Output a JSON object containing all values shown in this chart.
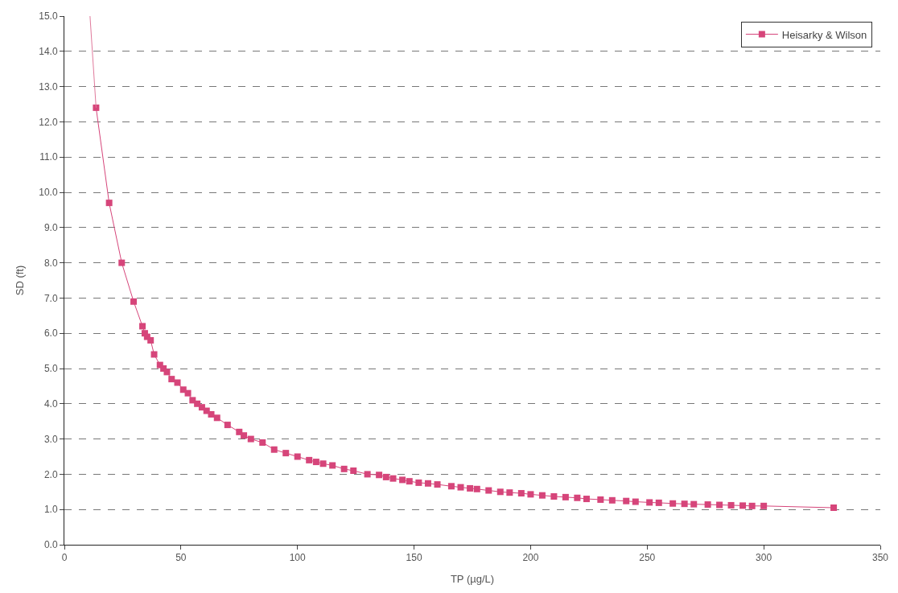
{
  "chart_data": {
    "type": "line",
    "xlabel": "TP (µg/L)",
    "ylabel": "SD (ft)",
    "series": [
      {
        "name": "Heisarky & Wilson",
        "color": "#d6457a",
        "marker": "square",
        "x": [
          13.6,
          19.2,
          24.6,
          29.7,
          33.5,
          34.5,
          35.5,
          37,
          38.5,
          41,
          42.5,
          44,
          46,
          48.5,
          51,
          53,
          55,
          57,
          59,
          61,
          63,
          65.5,
          70,
          75,
          77,
          80,
          85,
          90,
          95,
          100,
          105,
          108,
          111,
          115,
          120,
          124,
          130,
          135,
          138,
          141,
          145,
          148,
          152,
          156,
          160,
          166,
          170,
          174,
          177,
          182,
          187,
          191,
          196,
          200,
          205,
          210,
          215,
          220,
          224,
          230,
          235,
          241,
          245,
          251,
          255,
          261,
          266,
          270,
          276,
          281,
          286,
          291,
          295,
          300,
          330
        ],
        "values": [
          12.4,
          9.7,
          8.0,
          6.9,
          6.2,
          6.0,
          5.9,
          5.8,
          5.4,
          5.1,
          5.0,
          4.9,
          4.7,
          4.6,
          4.4,
          4.3,
          4.1,
          4.0,
          3.9,
          3.8,
          3.7,
          3.6,
          3.4,
          3.2,
          3.1,
          3.0,
          2.9,
          2.7,
          2.6,
          2.5,
          2.4,
          2.35,
          2.3,
          2.25,
          2.15,
          2.1,
          2.0,
          1.98,
          1.92,
          1.88,
          1.84,
          1.8,
          1.76,
          1.74,
          1.71,
          1.66,
          1.63,
          1.6,
          1.58,
          1.54,
          1.5,
          1.48,
          1.46,
          1.43,
          1.4,
          1.37,
          1.35,
          1.33,
          1.3,
          1.28,
          1.26,
          1.24,
          1.22,
          1.2,
          1.19,
          1.17,
          1.16,
          1.15,
          1.14,
          1.13,
          1.12,
          1.11,
          1.1,
          1.1,
          1.05
        ]
      },
      {
        "color": "#e07a9c",
        "marker": "none",
        "x": [
          11,
          13.6
        ],
        "values": [
          15,
          12.4
        ]
      }
    ],
    "xlim": [
      0,
      350
    ],
    "xticks": [
      0,
      50,
      100,
      150,
      200,
      250,
      300,
      350
    ],
    "ylim": [
      0,
      15
    ],
    "yticks": [
      {
        "value": 0,
        "label": "0.0"
      },
      {
        "value": 1,
        "label": "1.0"
      },
      {
        "value": 2,
        "label": "2.0"
      },
      {
        "value": 3,
        "label": "3.0"
      },
      {
        "value": 4,
        "label": "4.0"
      },
      {
        "value": 5,
        "label": "5.0"
      },
      {
        "value": 6,
        "label": "6.0"
      },
      {
        "value": 7,
        "label": "7.0"
      },
      {
        "value": 8,
        "label": "8.0"
      },
      {
        "value": 9,
        "label": "9.0"
      },
      {
        "value": 10,
        "label": "10.0"
      },
      {
        "value": 11,
        "label": "11.0"
      },
      {
        "value": 12,
        "label": "12.0"
      },
      {
        "value": 13,
        "label": "13.0"
      },
      {
        "value": 14,
        "label": "14.0"
      },
      {
        "value": 15,
        "label": "15.0"
      }
    ],
    "grid": "y",
    "legend": "top right"
  }
}
